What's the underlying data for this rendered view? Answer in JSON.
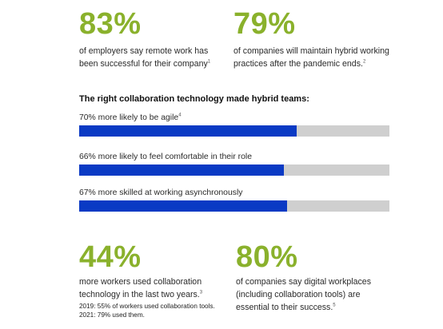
{
  "stats": [
    {
      "value": "83%",
      "lines": [
        "of employers say remote work has",
        "been successful for their company"
      ],
      "ref": "1"
    },
    {
      "value": "79%",
      "lines": [
        "of companies will maintain hybrid working",
        "practices after the pandemic ends."
      ],
      "ref": "2"
    },
    {
      "value": "44%",
      "lines": [
        "more workers used collaboration",
        "technology in the last two years."
      ],
      "ref": "3",
      "note": [
        "2019: 55% of workers used collaboration tools.",
        "2021: 79% used them."
      ]
    },
    {
      "value": "80%",
      "lines": [
        "of companies say digital workplaces",
        "(including collaboration tools) are",
        "essential to their success."
      ],
      "ref": "5"
    }
  ],
  "chart_data": {
    "type": "bar",
    "orientation": "horizontal",
    "title": "The right collaboration technology made hybrid teams:",
    "categories": [
      "70% more likely to be agile",
      "66% more likely to feel comfortable in their role",
      "67% more skilled at working asynchronously"
    ],
    "refs": [
      "4",
      "",
      ""
    ],
    "values": [
      70,
      66,
      67
    ],
    "xlim": [
      0,
      100
    ],
    "colors": {
      "fill": "#0a3ac4",
      "track": "#cfcfcf",
      "accent": "#8ab12c"
    },
    "grid": false
  }
}
